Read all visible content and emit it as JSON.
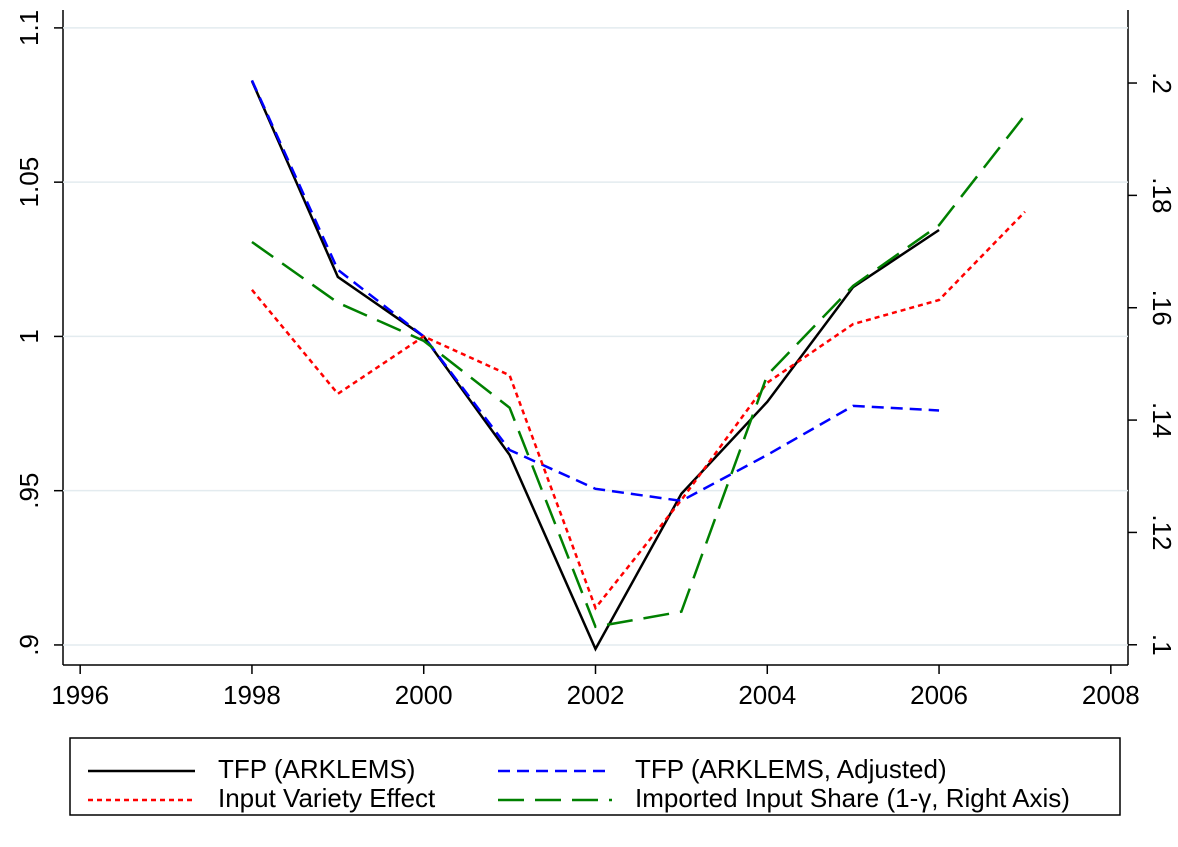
{
  "chart_data": {
    "type": "line",
    "x": [
      1998,
      1999,
      2000,
      2001,
      2002,
      2003,
      2004,
      2005,
      2006,
      2007
    ],
    "xlim": [
      1995.8,
      2008.2
    ],
    "xticks": [
      1996,
      1998,
      2000,
      2002,
      2004,
      2006,
      2008
    ],
    "ylim": [
      0.8935,
      1.1058
    ],
    "yticks": [
      {
        "value": 0.9,
        "label": ".9"
      },
      {
        "value": 0.95,
        "label": ".95"
      },
      1,
      1.05,
      1.1
    ],
    "y2lim": [
      0.0964,
      0.213
    ],
    "y2ticks": [
      {
        "value": 0.1,
        "label": ".1"
      },
      {
        "value": 0.12,
        "label": ".12"
      },
      {
        "value": 0.14,
        "label": ".14"
      },
      {
        "value": 0.16,
        "label": ".16"
      },
      {
        "value": 0.18,
        "label": ".18"
      },
      {
        "value": 0.2,
        "label": ".2"
      }
    ],
    "grid": true,
    "legend": "bottom",
    "series": [
      {
        "name": "TFP (ARKLEMS)",
        "color": "#000000",
        "dash": "solid",
        "values": [
          1.0828,
          1.0193,
          1.0,
          0.9616,
          0.8987,
          0.949,
          0.9788,
          1.016,
          1.0345,
          null
        ]
      },
      {
        "name": "TFP (ARKLEMS, Adjusted)",
        "color": "#0000ff",
        "dash": "dashed",
        "values": [
          1.083,
          1.0216,
          1.0,
          0.9632,
          0.9506,
          0.9467,
          0.9616,
          0.9775,
          0.976,
          null
        ]
      },
      {
        "name": "Input Variety Effect",
        "color": "#ff0000",
        "dash": "dotted",
        "values": [
          1.0151,
          0.9814,
          1.0,
          0.9874,
          0.912,
          0.947,
          0.985,
          1.004,
          1.0118,
          1.0404
        ]
      },
      {
        "name": "Imported Input Share (1-γ, Right Axis)",
        "color": "#008000",
        "dash": "longdash",
        "axis": "y2",
        "values": [
          0.1717,
          0.1609,
          0.1541,
          0.1422,
          0.1032,
          0.1059,
          0.148,
          0.1639,
          0.1747,
          0.1943
        ]
      }
    ]
  }
}
